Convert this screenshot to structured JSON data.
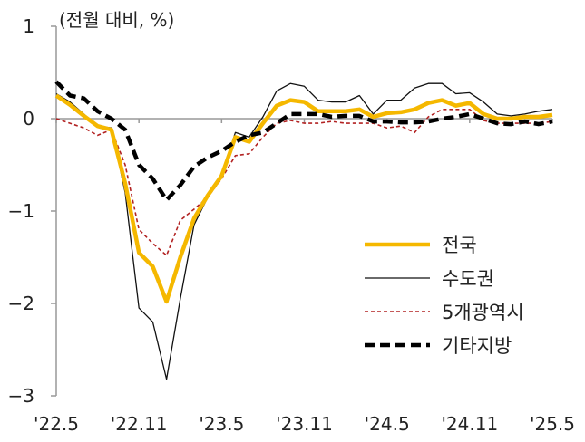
{
  "chart_data": {
    "type": "line",
    "unit_label": "(전월 대비, %)",
    "ylim": [
      -3,
      1
    ],
    "y_ticks": [
      {
        "value": 1,
        "label": "1"
      },
      {
        "value": 0,
        "label": "0"
      },
      {
        "value": -1,
        "label": "-1"
      },
      {
        "value": -2,
        "label": "-2"
      },
      {
        "value": -3,
        "label": "-3"
      }
    ],
    "x_ticks": [
      {
        "index": 0,
        "label": "'22.5"
      },
      {
        "index": 6,
        "label": "'22.11"
      },
      {
        "index": 12,
        "label": "'23.5"
      },
      {
        "index": 18,
        "label": "'23.11"
      },
      {
        "index": 24,
        "label": "'24.5"
      },
      {
        "index": 30,
        "label": "'24.11"
      },
      {
        "index": 36,
        "label": "'25.5"
      }
    ],
    "x": [
      "2022-05",
      "2022-06",
      "2022-07",
      "2022-08",
      "2022-09",
      "2022-10",
      "2022-11",
      "2022-12",
      "2023-01",
      "2023-02",
      "2023-03",
      "2023-04",
      "2023-05",
      "2023-06",
      "2023-07",
      "2023-08",
      "2023-09",
      "2023-10",
      "2023-11",
      "2023-12",
      "2024-01",
      "2024-02",
      "2024-03",
      "2024-04",
      "2024-05",
      "2024-06",
      "2024-07",
      "2024-08",
      "2024-09",
      "2024-10",
      "2024-11",
      "2024-12",
      "2025-01",
      "2025-02",
      "2025-03",
      "2025-04",
      "2025-05"
    ],
    "zero_line": true,
    "legend_placement": "bottom-right",
    "series": [
      {
        "name": "전국",
        "color": "#F5B800",
        "style": "solid-thick",
        "values": [
          0.25,
          0.15,
          0.03,
          -0.08,
          -0.12,
          -0.7,
          -1.45,
          -1.6,
          -1.98,
          -1.5,
          -1.08,
          -0.83,
          -0.62,
          -0.2,
          -0.25,
          -0.05,
          0.14,
          0.2,
          0.18,
          0.08,
          0.08,
          0.08,
          0.1,
          0.02,
          0.06,
          0.07,
          0.1,
          0.17,
          0.2,
          0.14,
          0.17,
          0.05,
          0.0,
          0.0,
          0.02,
          0.02,
          0.04
        ]
      },
      {
        "name": "수도권",
        "color": "#111111",
        "style": "solid-thin",
        "values": [
          0.27,
          0.18,
          0.05,
          -0.08,
          -0.1,
          -0.8,
          -2.05,
          -2.2,
          -2.82,
          -1.95,
          -1.15,
          -0.85,
          -0.6,
          -0.15,
          -0.2,
          0.02,
          0.3,
          0.38,
          0.35,
          0.2,
          0.18,
          0.18,
          0.25,
          0.05,
          0.2,
          0.2,
          0.33,
          0.38,
          0.38,
          0.27,
          0.28,
          0.18,
          0.05,
          0.03,
          0.05,
          0.08,
          0.1
        ]
      },
      {
        "name": "5개광역시",
        "color": "#B22222",
        "style": "dotted",
        "values": [
          0.0,
          -0.05,
          -0.1,
          -0.18,
          -0.12,
          -0.5,
          -1.2,
          -1.35,
          -1.48,
          -1.1,
          -0.98,
          -0.85,
          -0.65,
          -0.4,
          -0.38,
          -0.2,
          -0.05,
          -0.02,
          -0.05,
          -0.05,
          -0.03,
          -0.05,
          -0.05,
          -0.05,
          -0.1,
          -0.08,
          -0.15,
          0.02,
          0.1,
          0.1,
          0.1,
          -0.02,
          -0.05,
          -0.05,
          -0.05,
          -0.05,
          -0.03
        ]
      },
      {
        "name": "기타지방",
        "color": "#000000",
        "style": "dashed",
        "values": [
          0.4,
          0.25,
          0.22,
          0.08,
          0.0,
          -0.12,
          -0.5,
          -0.65,
          -0.88,
          -0.72,
          -0.52,
          -0.42,
          -0.35,
          -0.25,
          -0.18,
          -0.15,
          -0.05,
          0.05,
          0.05,
          0.05,
          0.02,
          0.03,
          0.03,
          -0.03,
          -0.03,
          -0.04,
          -0.04,
          -0.03,
          0.0,
          0.02,
          0.05,
          0.0,
          -0.05,
          -0.06,
          -0.03,
          -0.06,
          -0.03
        ]
      }
    ]
  }
}
